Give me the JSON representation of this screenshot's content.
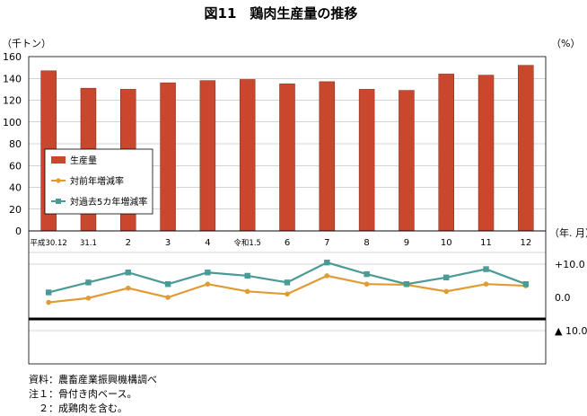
{
  "chart_data": {
    "type": "bar",
    "title": "図11　鶏肉生産量の推移",
    "left_unit": "（千トン）",
    "right_unit": "（%）",
    "x_unit": "（年. 月）",
    "categories": [
      "平成30.12",
      "31.1",
      "2",
      "3",
      "4",
      "令和1.5",
      "6",
      "7",
      "8",
      "9",
      "10",
      "11",
      "12"
    ],
    "ylim": [
      0,
      160
    ],
    "yticks": [
      "160",
      "140",
      "120",
      "100",
      "80",
      "60",
      "40",
      "20",
      "0"
    ],
    "pct_lim": [
      -20,
      20
    ],
    "pct_ticks": [
      "+10.0",
      "0.0",
      "▲ 10.0"
    ],
    "grid": true,
    "legend_position": "bottom-left",
    "series": [
      {
        "name": "生産量",
        "values": [
          147,
          131,
          130,
          136,
          138,
          139,
          135,
          137,
          130,
          129,
          144,
          143,
          152
        ],
        "color": "#c9472c"
      },
      {
        "name": "対前年増減率",
        "values": [
          -1.5,
          -0.2,
          2.8,
          0.0,
          4.0,
          1.8,
          1.0,
          6.5,
          4.0,
          3.8,
          1.8,
          4.0,
          3.5
        ],
        "color": "#e09b35"
      },
      {
        "name": "対過去5カ年増減率",
        "values": [
          1.5,
          4.5,
          7.5,
          4.0,
          7.5,
          6.5,
          4.5,
          10.5,
          7.0,
          4.0,
          6.0,
          8.5,
          4.0
        ],
        "color": "#4a9a96"
      }
    ]
  },
  "notes": [
    "資料：農畜産業振興機構調べ",
    "注１：骨付き肉ベース。",
    "　２：成鶏肉を含む。"
  ]
}
